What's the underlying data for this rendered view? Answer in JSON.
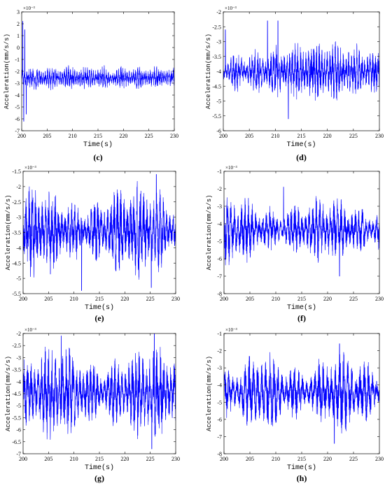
{
  "figure": {
    "x_ticks": [
      "200",
      "205",
      "210",
      "215",
      "220",
      "225",
      "230"
    ],
    "chart_data": [
      {
        "id": "c",
        "type": "line",
        "caption": "(c)",
        "xlabel": "Time(s)",
        "ylabel": "Acceleration(mm/s/s)",
        "scale_label": "×10⁻³",
        "xlim": [
          200,
          230
        ],
        "ylim": [
          -7,
          3
        ],
        "ytick_labels": [
          "-7",
          "-6",
          "-5",
          "-4",
          "-3",
          "-2",
          "-1",
          "0",
          "1",
          "2",
          "3"
        ],
        "color": "#0000ff",
        "series": [
          {
            "mean": -2.55,
            "amplitude": 0.55,
            "freq": 2.5,
            "seed": 3,
            "spikes": [
              [
                200.2,
                2.2
              ],
              [
                200.4,
                -6.2
              ],
              [
                200.6,
                1.5
              ],
              [
                200.9,
                -5.6
              ]
            ]
          }
        ]
      },
      {
        "id": "d",
        "type": "line",
        "caption": "(d)",
        "xlabel": "Time(s)",
        "ylabel": "Acceleration(mm/s/s)",
        "scale_label": "×10⁻³",
        "xlim": [
          200,
          230
        ],
        "ylim": [
          -6,
          -2
        ],
        "ytick_labels": [
          "-6",
          "-5.5",
          "-5",
          "-4.5",
          "-4",
          "-3.5",
          "-3",
          "-2.5",
          "-2"
        ],
        "color": "#0000ff",
        "series": [
          {
            "mean": -4.0,
            "amplitude": 0.55,
            "freq": 2.0,
            "seed": 7,
            "spikes": [
              [
                200.4,
                -2.6
              ],
              [
                208.5,
                -2.3
              ],
              [
                210.5,
                -2.3
              ],
              [
                212.5,
                -5.6
              ]
            ]
          }
        ]
      },
      {
        "id": "e",
        "type": "line",
        "caption": "(e)",
        "xlabel": "Time(s)",
        "ylabel": "Acceleration(mm/s/s)",
        "scale_label": "×10⁻³",
        "xlim": [
          200,
          230
        ],
        "ylim": [
          -5.5,
          -1.5
        ],
        "ytick_labels": [
          "-5.5",
          "-5",
          "-4.5",
          "-4",
          "-3.5",
          "-3",
          "-2.5",
          "-2",
          "-1.5"
        ],
        "color": "#0000ff",
        "series": [
          {
            "mean": -3.45,
            "amplitude": 0.85,
            "freq": 1.6,
            "seed": 11,
            "spikes": [
              [
                211.5,
                -5.4
              ],
              [
                225.2,
                -5.3
              ],
              [
                226.2,
                -1.6
              ]
            ]
          }
        ]
      },
      {
        "id": "f",
        "type": "line",
        "caption": "(f)",
        "xlabel": "Time(s)",
        "ylabel": "Acceleration(mm/s/s)",
        "scale_label": "×10⁻³",
        "xlim": [
          200,
          230
        ],
        "ylim": [
          -8,
          -1
        ],
        "ytick_labels": [
          "-8",
          "-7",
          "-6",
          "-5",
          "-4",
          "-3",
          "-2",
          "-1"
        ],
        "color": "#0000ff",
        "series": [
          {
            "mean": -4.35,
            "amplitude": 1.1,
            "freq": 1.5,
            "seed": 13,
            "spikes": [
              [
                211.5,
                -1.9
              ],
              [
                222.3,
                -7.0
              ]
            ]
          }
        ]
      },
      {
        "id": "g",
        "type": "line",
        "caption": "(g)",
        "xlabel": "Time(s)",
        "ylabel": "Acceleration(mm/s/s)",
        "scale_label": "×10⁻³",
        "xlim": [
          200,
          230
        ],
        "ylim": [
          -7,
          -2
        ],
        "ytick_labels": [
          "-7",
          "-6.5",
          "-6",
          "-5.5",
          "-5",
          "-4.5",
          "-4",
          "-3.5",
          "-3",
          "-2.5",
          "-2"
        ],
        "color": "#0000ff",
        "series": [
          {
            "mean": -4.45,
            "amplitude": 1.1,
            "freq": 1.5,
            "seed": 17,
            "spikes": [
              [
                207.5,
                -2.1
              ],
              [
                225.3,
                -6.8
              ],
              [
                225.8,
                -2.0
              ]
            ]
          }
        ]
      },
      {
        "id": "h",
        "type": "line",
        "caption": "(h)",
        "xlabel": "Time(s)",
        "ylabel": "Acceleration(mm/s/s)",
        "scale_label": "×10⁻³",
        "xlim": [
          200,
          230
        ],
        "ylim": [
          -8,
          -1
        ],
        "ytick_labels": [
          "-8",
          "-7",
          "-6",
          "-5",
          "-4",
          "-3",
          "-2",
          "-1"
        ],
        "color": "#0000ff",
        "series": [
          {
            "mean": -4.4,
            "amplitude": 1.3,
            "freq": 1.3,
            "seed": 23,
            "spikes": [
              [
                221.3,
                -7.4
              ],
              [
                222.3,
                -1.6
              ]
            ]
          }
        ]
      }
    ]
  }
}
